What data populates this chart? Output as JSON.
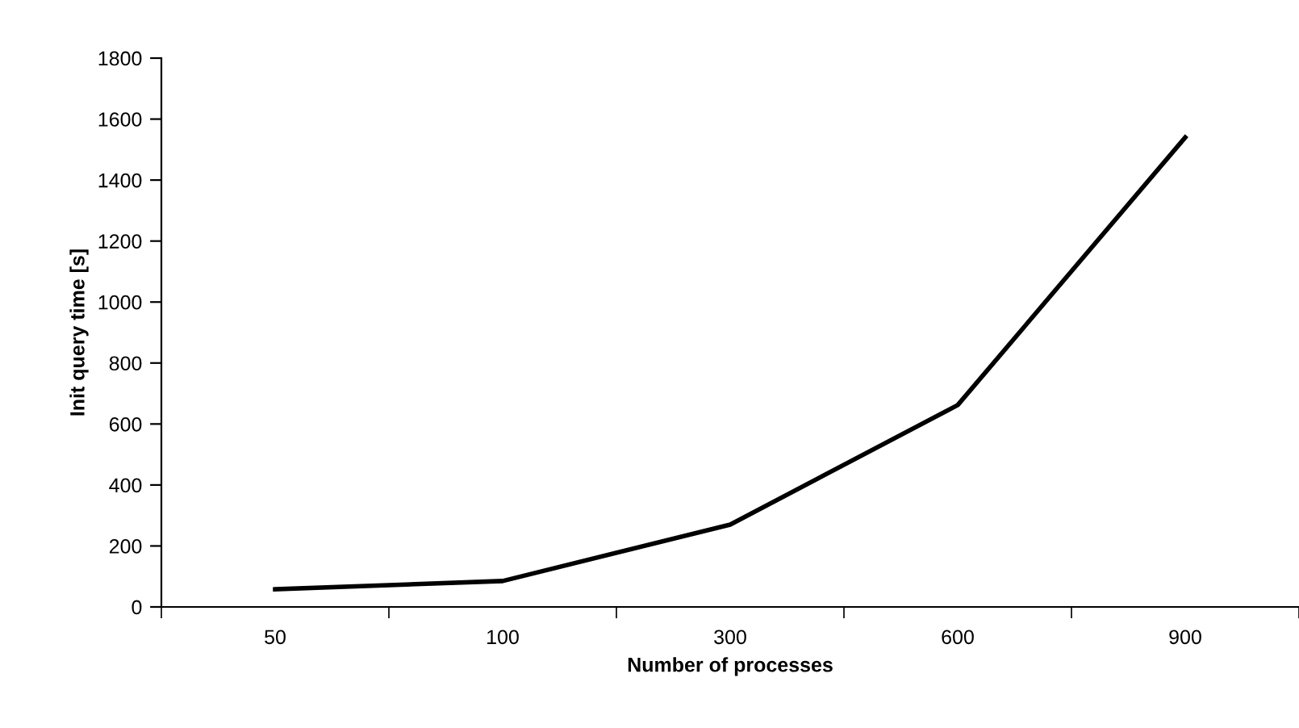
{
  "chart_data": {
    "type": "line",
    "xlabel": "Number of processes",
    "ylabel": "Init query time [s]",
    "categories": [
      "50",
      "100",
      "300",
      "600",
      "900"
    ],
    "series": [
      {
        "color": "#000000",
        "values": [
          58,
          85,
          270,
          662,
          1540
        ]
      }
    ],
    "ylim": [
      0,
      1800
    ],
    "yticks": [
      0,
      200,
      400,
      600,
      800,
      1000,
      1200,
      1400,
      1600,
      1800
    ],
    "grid": false,
    "marker": "none",
    "line_style": "solid"
  }
}
